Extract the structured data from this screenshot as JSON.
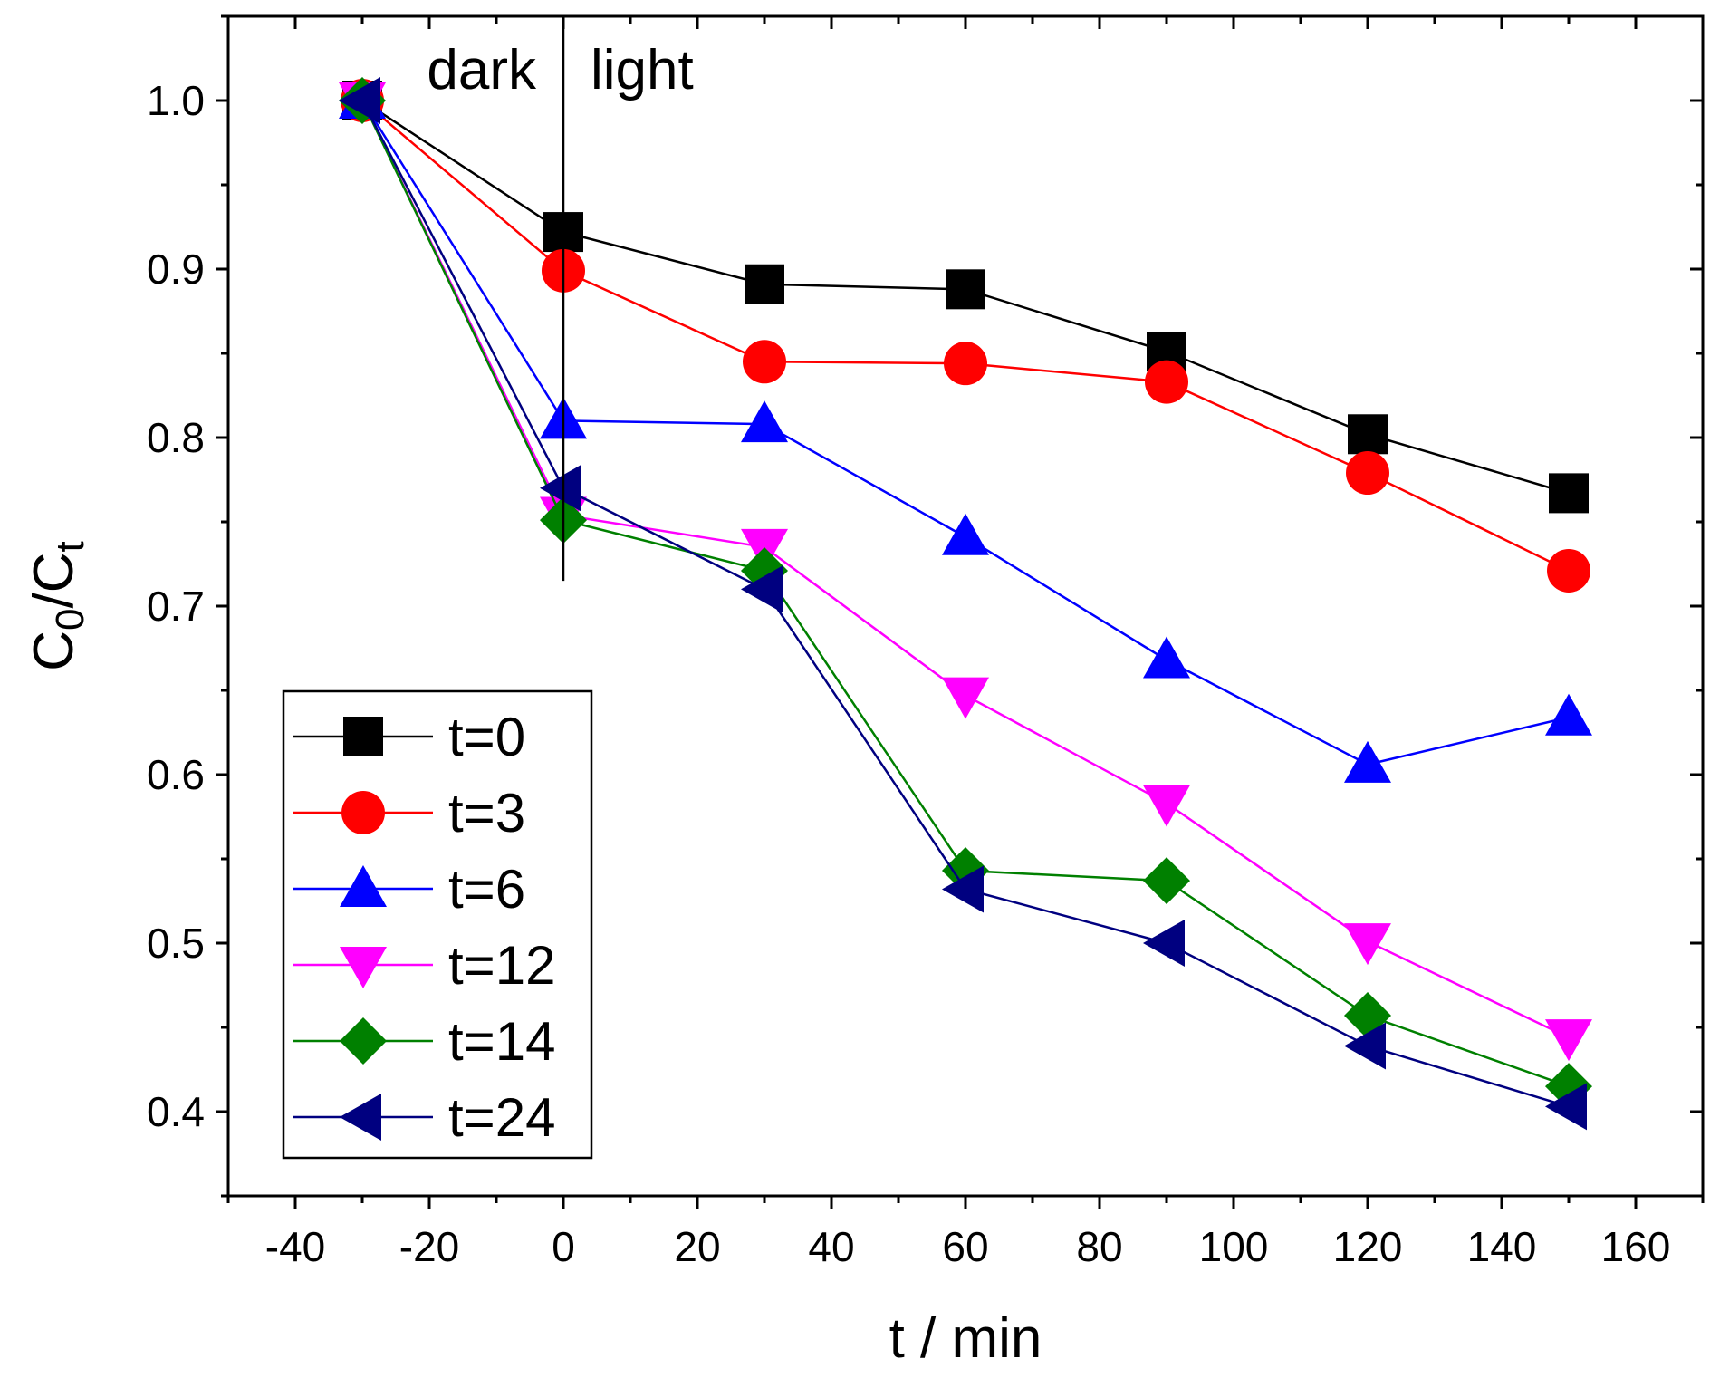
{
  "chart_data": {
    "type": "line",
    "xlabel": "t / min",
    "ylabel": "C0/Ct",
    "ylabel_main": "C",
    "ylabel_sub0": "0",
    "ylabel_slash": "/C",
    "ylabel_sub1": "t",
    "xlim": [
      -50,
      170
    ],
    "ylim": [
      0.35,
      1.05
    ],
    "x_ticks": [
      -40,
      -20,
      0,
      20,
      40,
      60,
      80,
      100,
      120,
      140,
      160
    ],
    "x_tick_labels": [
      "-40",
      "-20",
      "0",
      "20",
      "40",
      "60",
      "80",
      "100",
      "120",
      "140",
      "160"
    ],
    "y_ticks": [
      0.4,
      0.5,
      0.6,
      0.7,
      0.8,
      0.9,
      1.0
    ],
    "y_tick_labels": [
      "0.4",
      "0.5",
      "0.6",
      "0.7",
      "0.8",
      "0.9",
      "1.0"
    ],
    "annotations": {
      "dark_label": "dark",
      "light_label": "light",
      "divider_x": 0,
      "divider_y_from": 0.715,
      "divider_y_to": 1.05
    },
    "legend_position": "bottom-left",
    "x": [
      -30,
      0,
      30,
      60,
      90,
      120,
      150
    ],
    "series": [
      {
        "name": "t=0",
        "color": "#000000",
        "marker": "square",
        "values": [
          1.0,
          0.922,
          0.891,
          0.888,
          0.851,
          0.802,
          0.767
        ]
      },
      {
        "name": "t=3",
        "color": "#ff0000",
        "marker": "circle",
        "values": [
          1.0,
          0.899,
          0.845,
          0.844,
          0.833,
          0.779,
          0.721
        ]
      },
      {
        "name": "t=6",
        "color": "#0000ff",
        "marker": "triangle-up",
        "values": [
          1.0,
          0.81,
          0.808,
          0.741,
          0.668,
          0.606,
          0.634
        ]
      },
      {
        "name": "t=12",
        "color": "#ff00ff",
        "marker": "triangle-down",
        "values": [
          1.0,
          0.754,
          0.735,
          0.647,
          0.583,
          0.501,
          0.444
        ]
      },
      {
        "name": "t=14",
        "color": "#008000",
        "marker": "diamond",
        "values": [
          1.0,
          0.751,
          0.721,
          0.543,
          0.537,
          0.457,
          0.415
        ]
      },
      {
        "name": "t=24",
        "color": "#000080",
        "marker": "triangle-left",
        "values": [
          1.0,
          0.77,
          0.71,
          0.532,
          0.5,
          0.439,
          0.403
        ]
      }
    ]
  }
}
